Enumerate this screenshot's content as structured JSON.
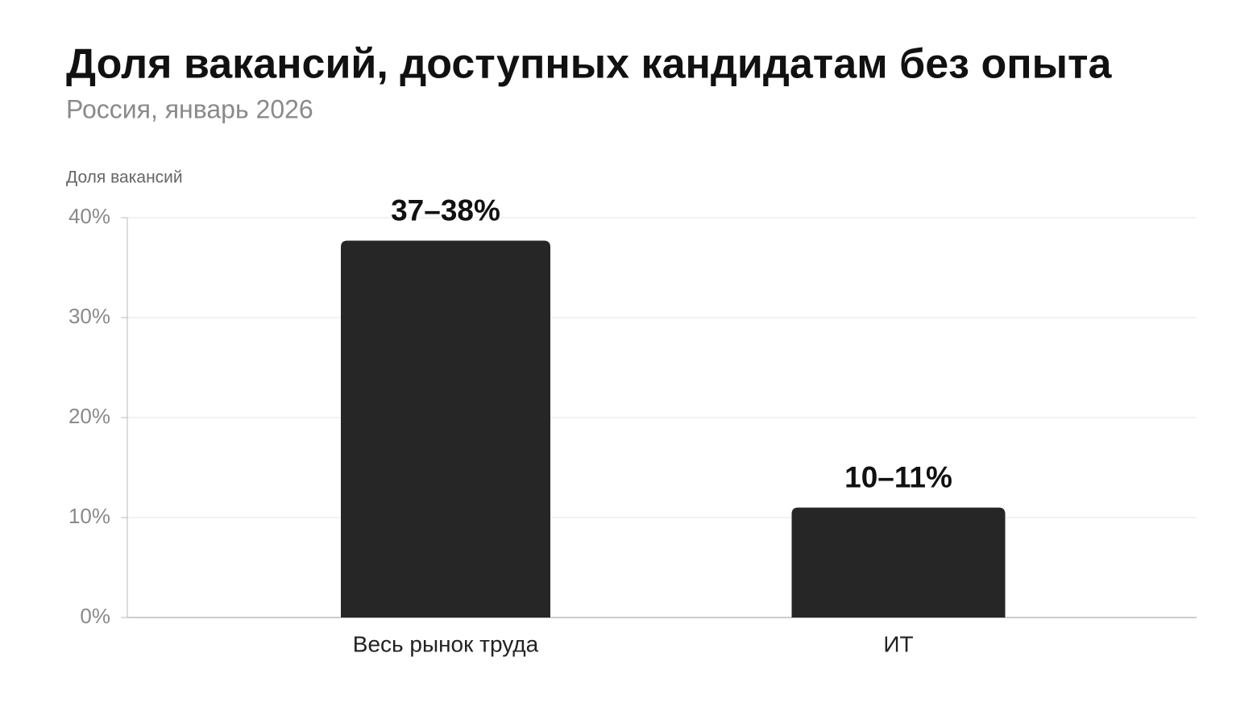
{
  "chart_data": {
    "type": "bar",
    "title": "Доля вакансий, доступных кандидатам без опыта",
    "subtitle": "Россия, январь 2026",
    "y_label": "Доля вакансий",
    "categories": [
      "Весь рынок труда",
      "ИТ"
    ],
    "values": [
      37.7,
      11
    ],
    "value_labels": [
      "37–38%",
      "10–11%"
    ],
    "color": "#262626",
    "ylim": [
      0,
      40
    ],
    "yticks": [
      {
        "value": 0,
        "label": "0%"
      },
      {
        "value": 10,
        "label": "10%"
      },
      {
        "value": 20,
        "label": "20%"
      },
      {
        "value": 30,
        "label": "30%"
      },
      {
        "value": 40,
        "label": "40%"
      }
    ],
    "grid": true
  }
}
